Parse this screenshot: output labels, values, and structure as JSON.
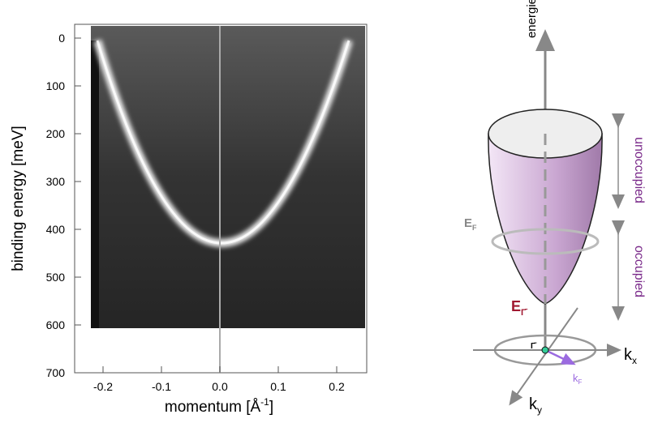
{
  "plot": {
    "ylabel": "binding energy [meV]",
    "xlabel": {
      "text": "momentum [Å",
      "sup": "-1",
      "end": "]"
    },
    "yticks": [
      "0",
      "100",
      "200",
      "300",
      "400",
      "500",
      "600",
      "700"
    ],
    "xticks": [
      "-0.2",
      "-0.1",
      "0.0",
      "0.1",
      "0.2"
    ]
  },
  "diagram": {
    "axis_label": "energie",
    "unoccupied": "unoccupied",
    "occupied": "occupied",
    "ef": {
      "base": "E",
      "sub": "F"
    },
    "e_gamma": {
      "base": "E",
      "sub": "Γ̄"
    },
    "gamma": "Γ̄",
    "kx": {
      "base": "k",
      "sub": "x"
    },
    "ky": {
      "base": "k",
      "sub": "y"
    },
    "kf": {
      "base": "k",
      "sub": "F"
    }
  }
}
